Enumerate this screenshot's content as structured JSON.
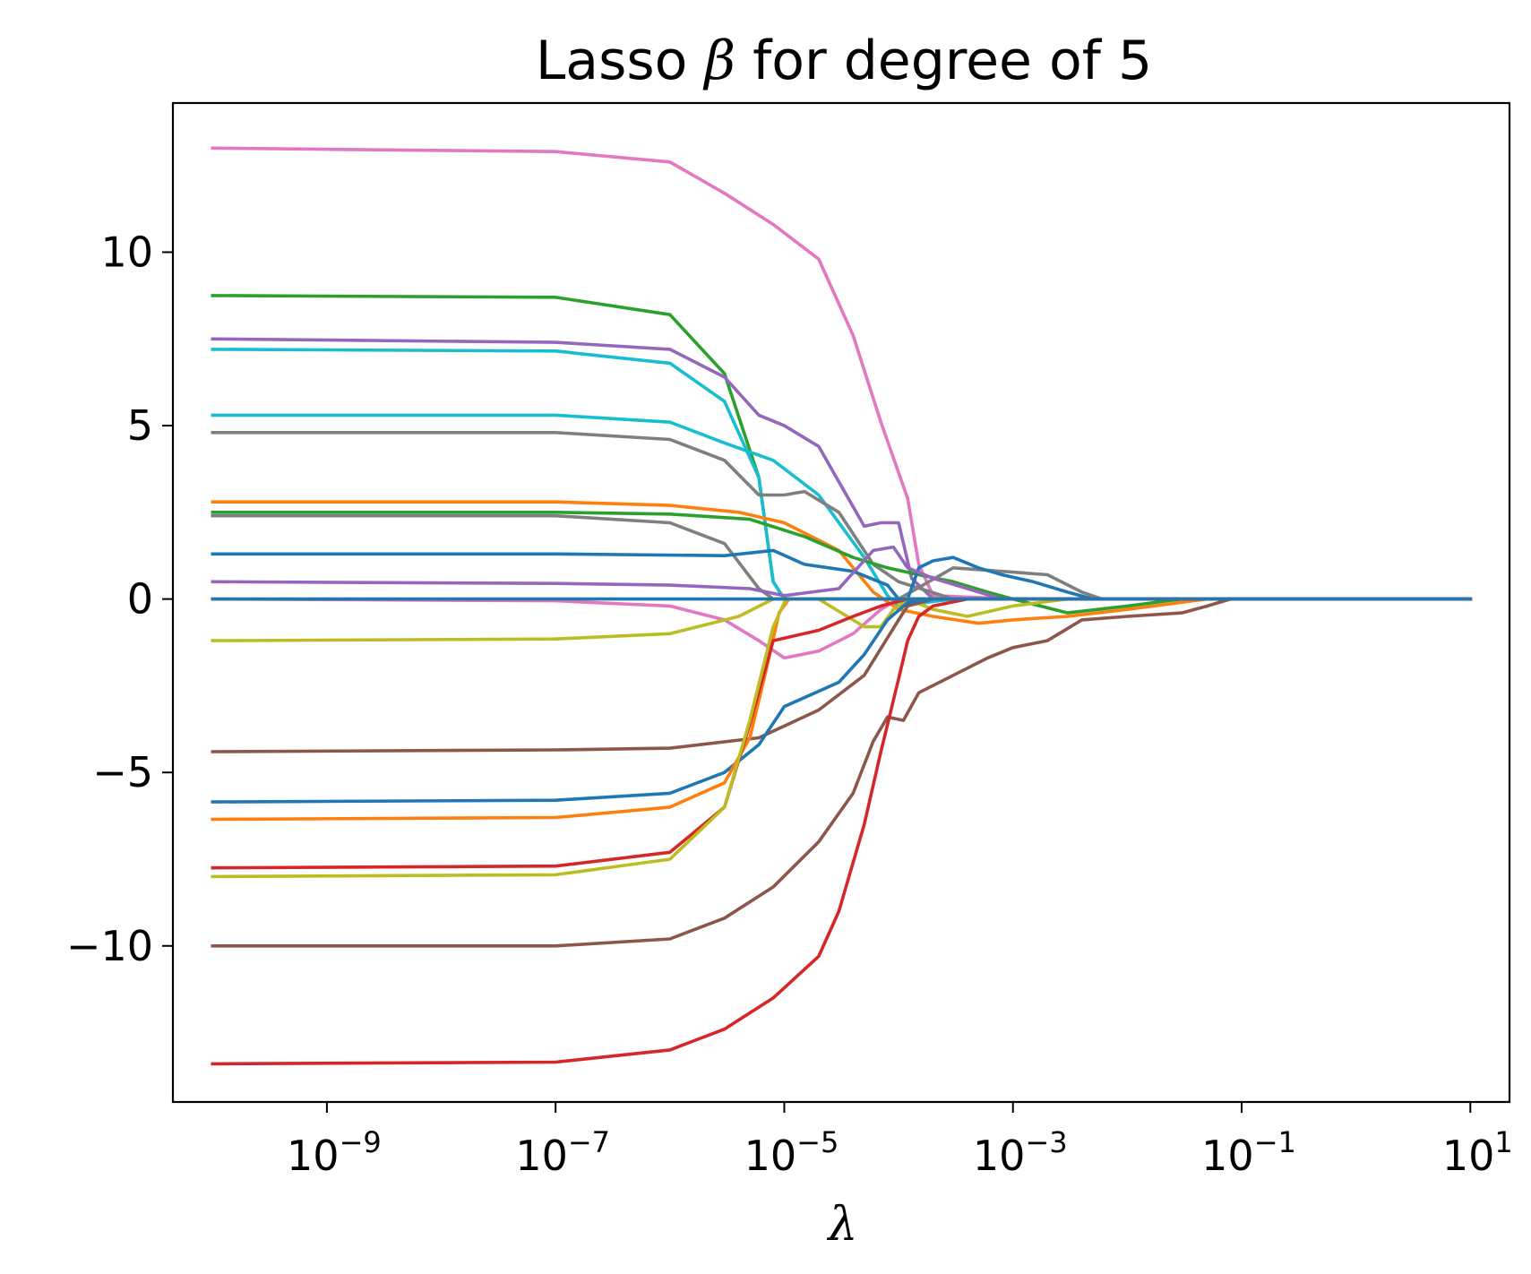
{
  "chart_data": {
    "type": "line",
    "title_prefix": "Lasso ",
    "title_symbol": "β",
    "title_suffix": " for degree of 5",
    "xlabel": "λ",
    "ylabel": "",
    "x_scale": "log",
    "x_range": [
      1e-10,
      10
    ],
    "xlim": [
      4.5e-11,
      22
    ],
    "ylim": [
      -14.5,
      14.3
    ],
    "x_ticks": [
      {
        "value": 1e-09,
        "base": "10",
        "exp": "−9"
      },
      {
        "value": 1e-07,
        "base": "10",
        "exp": "−7"
      },
      {
        "value": 1e-05,
        "base": "10",
        "exp": "−5"
      },
      {
        "value": 0.001,
        "base": "10",
        "exp": "−3"
      },
      {
        "value": 0.1,
        "base": "10",
        "exp": "−1"
      },
      {
        "value": 10,
        "base": "10",
        "exp": "1"
      }
    ],
    "y_ticks": [
      {
        "value": 10,
        "label": "10"
      },
      {
        "value": 5,
        "label": "5"
      },
      {
        "value": 0,
        "label": "0"
      },
      {
        "value": -5,
        "label": "−5"
      },
      {
        "value": -10,
        "label": "−10"
      }
    ],
    "grid": false,
    "legend": "none",
    "series": [
      {
        "color": "#e377c2",
        "points": [
          [
            1e-10,
            13
          ],
          [
            1e-07,
            12.9
          ],
          [
            1e-06,
            12.6
          ],
          [
            3e-06,
            11.7
          ],
          [
            8e-06,
            10.8
          ],
          [
            2e-05,
            9.8
          ],
          [
            4e-05,
            7.6
          ],
          [
            7e-05,
            5.1
          ],
          [
            0.00012,
            2.9
          ],
          [
            0.00015,
            1.0
          ],
          [
            0.0002,
            0.1
          ],
          [
            0.001,
            0
          ],
          [
            10,
            0
          ]
        ]
      },
      {
        "color": "#2ca02c",
        "points": [
          [
            1e-10,
            8.75
          ],
          [
            1e-07,
            8.7
          ],
          [
            1e-06,
            8.2
          ],
          [
            3e-06,
            6.5
          ],
          [
            6e-06,
            3.5
          ],
          [
            8e-06,
            0.5
          ],
          [
            1e-05,
            0
          ],
          [
            10,
            0
          ]
        ]
      },
      {
        "color": "#9467bd",
        "points": [
          [
            1e-10,
            7.5
          ],
          [
            1e-07,
            7.4
          ],
          [
            1e-06,
            7.2
          ],
          [
            3e-06,
            6.4
          ],
          [
            6e-06,
            5.3
          ],
          [
            1e-05,
            5.0
          ],
          [
            2e-05,
            4.4
          ],
          [
            5e-05,
            2.1
          ],
          [
            7e-05,
            2.2
          ],
          [
            0.0001,
            2.2
          ],
          [
            0.00013,
            0.6
          ],
          [
            0.0002,
            0
          ],
          [
            10,
            0
          ]
        ]
      },
      {
        "color": "#17becf",
        "points": [
          [
            1e-10,
            7.2
          ],
          [
            1e-07,
            7.15
          ],
          [
            1e-06,
            6.8
          ],
          [
            3e-06,
            5.7
          ],
          [
            6e-06,
            3.5
          ],
          [
            8e-06,
            0.5
          ],
          [
            1e-05,
            0
          ],
          [
            10,
            0
          ]
        ]
      },
      {
        "color": "#17becf",
        "points": [
          [
            1e-10,
            5.3
          ],
          [
            1e-07,
            5.3
          ],
          [
            1e-06,
            5.1
          ],
          [
            3e-06,
            4.5
          ],
          [
            8e-06,
            4.0
          ],
          [
            2e-05,
            3.0
          ],
          [
            5e-05,
            1.2
          ],
          [
            8e-05,
            0.1
          ],
          [
            0.0001,
            -0.2
          ],
          [
            0.0003,
            0
          ],
          [
            10,
            0
          ]
        ]
      },
      {
        "color": "#7f7f7f",
        "points": [
          [
            1e-10,
            4.8
          ],
          [
            1e-07,
            4.8
          ],
          [
            1e-06,
            4.6
          ],
          [
            3e-06,
            4.0
          ],
          [
            6e-06,
            3.0
          ],
          [
            1e-05,
            3.0
          ],
          [
            1.5e-05,
            3.1
          ],
          [
            3e-05,
            2.5
          ],
          [
            6e-05,
            1.0
          ],
          [
            0.0001,
            0.5
          ],
          [
            0.0003,
            0
          ],
          [
            10,
            0
          ]
        ]
      },
      {
        "color": "#ff7f0e",
        "points": [
          [
            1e-10,
            2.8
          ],
          [
            1e-07,
            2.8
          ],
          [
            1e-06,
            2.7
          ],
          [
            4e-06,
            2.5
          ],
          [
            1e-05,
            2.2
          ],
          [
            3e-05,
            1.4
          ],
          [
            6e-05,
            0.2
          ],
          [
            0.0001,
            -0.3
          ],
          [
            0.0002,
            -0.5
          ],
          [
            0.0005,
            -0.7
          ],
          [
            0.001,
            -0.6
          ],
          [
            0.003,
            -0.5
          ],
          [
            0.01,
            -0.3
          ],
          [
            0.05,
            0
          ],
          [
            10,
            0
          ]
        ]
      },
      {
        "color": "#2ca02c",
        "points": [
          [
            1e-10,
            2.5
          ],
          [
            1e-07,
            2.5
          ],
          [
            1e-06,
            2.45
          ],
          [
            5e-06,
            2.3
          ],
          [
            1.5e-05,
            1.8
          ],
          [
            4e-05,
            1.2
          ],
          [
            8e-05,
            0.9
          ],
          [
            0.00015,
            0.7
          ],
          [
            0.0003,
            0.5
          ],
          [
            0.0006,
            0.2
          ],
          [
            0.001,
            0
          ],
          [
            0.003,
            -0.4
          ],
          [
            0.01,
            -0.2
          ],
          [
            0.03,
            0
          ],
          [
            10,
            0
          ]
        ]
      },
      {
        "color": "#7f7f7f",
        "points": [
          [
            1e-10,
            2.4
          ],
          [
            1e-07,
            2.4
          ],
          [
            1e-06,
            2.2
          ],
          [
            3e-06,
            1.6
          ],
          [
            6e-06,
            0.3
          ],
          [
            8e-06,
            0
          ],
          [
            0.0001,
            0
          ],
          [
            0.0003,
            0.9
          ],
          [
            0.0008,
            0.8
          ],
          [
            0.002,
            0.7
          ],
          [
            0.004,
            0.2
          ],
          [
            0.006,
            0
          ],
          [
            10,
            0
          ]
        ]
      },
      {
        "color": "#1f77b4",
        "points": [
          [
            1e-10,
            1.3
          ],
          [
            1e-07,
            1.3
          ],
          [
            3e-06,
            1.25
          ],
          [
            8e-06,
            1.4
          ],
          [
            1.5e-05,
            1.0
          ],
          [
            4e-05,
            0.8
          ],
          [
            8e-05,
            0.4
          ],
          [
            0.0001,
            0
          ],
          [
            0.00012,
            0
          ],
          [
            0.00015,
            0.9
          ],
          [
            0.0002,
            1.1
          ],
          [
            0.0003,
            1.2
          ],
          [
            0.0005,
            0.9
          ],
          [
            0.0008,
            0.7
          ],
          [
            0.0015,
            0.5
          ],
          [
            0.003,
            0.2
          ],
          [
            0.005,
            0
          ],
          [
            10,
            0
          ]
        ]
      },
      {
        "color": "#9467bd",
        "points": [
          [
            1e-10,
            0.5
          ],
          [
            1e-07,
            0.45
          ],
          [
            1e-06,
            0.4
          ],
          [
            5e-06,
            0.3
          ],
          [
            1e-05,
            0.1
          ],
          [
            3e-05,
            0.3
          ],
          [
            6e-05,
            1.4
          ],
          [
            9e-05,
            1.5
          ],
          [
            0.00012,
            0.9
          ],
          [
            0.0002,
            0.6
          ],
          [
            0.0004,
            0.3
          ],
          [
            0.0008,
            0
          ],
          [
            10,
            0
          ]
        ]
      },
      {
        "color": "#e377c2",
        "points": [
          [
            1e-10,
            0
          ],
          [
            1e-07,
            -0.05
          ],
          [
            1e-06,
            -0.2
          ],
          [
            3e-06,
            -0.6
          ],
          [
            6e-06,
            -1.2
          ],
          [
            1e-05,
            -1.7
          ],
          [
            2e-05,
            -1.5
          ],
          [
            4e-05,
            -1.0
          ],
          [
            7e-05,
            -0.3
          ],
          [
            0.0001,
            0
          ],
          [
            10,
            0
          ]
        ]
      },
      {
        "color": "#bcbd22",
        "points": [
          [
            1e-10,
            -1.2
          ],
          [
            1e-07,
            -1.15
          ],
          [
            1e-06,
            -1.0
          ],
          [
            4e-06,
            -0.5
          ],
          [
            8e-06,
            0
          ],
          [
            2e-05,
            0
          ],
          [
            5e-05,
            -0.8
          ],
          [
            7e-05,
            -0.8
          ],
          [
            9e-05,
            -0.3
          ],
          [
            0.00012,
            0
          ],
          [
            0.0002,
            -0.3
          ],
          [
            0.0004,
            -0.5
          ],
          [
            0.001,
            -0.2
          ],
          [
            0.003,
            0
          ],
          [
            10,
            0
          ]
        ]
      },
      {
        "color": "#8c564b",
        "points": [
          [
            1e-10,
            -4.4
          ],
          [
            1e-07,
            -4.35
          ],
          [
            1e-06,
            -4.3
          ],
          [
            6e-06,
            -4.0
          ],
          [
            2e-05,
            -3.2
          ],
          [
            5e-05,
            -2.2
          ],
          [
            0.0001,
            -0.6
          ],
          [
            0.00012,
            -0.2
          ],
          [
            0.0002,
            0
          ],
          [
            10,
            0
          ]
        ]
      },
      {
        "color": "#1f77b4",
        "points": [
          [
            1e-10,
            -5.85
          ],
          [
            1e-07,
            -5.8
          ],
          [
            1e-06,
            -5.6
          ],
          [
            3e-06,
            -5.0
          ],
          [
            6e-06,
            -4.2
          ],
          [
            1e-05,
            -3.1
          ],
          [
            3e-05,
            -2.4
          ],
          [
            5e-05,
            -1.6
          ],
          [
            8e-05,
            -0.6
          ],
          [
            0.00012,
            -0.1
          ],
          [
            0.0002,
            0
          ],
          [
            10,
            0
          ]
        ]
      },
      {
        "color": "#ff7f0e",
        "points": [
          [
            1e-10,
            -6.35
          ],
          [
            1e-07,
            -6.3
          ],
          [
            1e-06,
            -6.0
          ],
          [
            3e-06,
            -5.3
          ],
          [
            5e-06,
            -4.0
          ],
          [
            7e-06,
            -2.0
          ],
          [
            9e-06,
            -0.4
          ],
          [
            1.1e-05,
            0
          ],
          [
            10,
            0
          ]
        ]
      },
      {
        "color": "#d62728",
        "points": [
          [
            1e-10,
            -7.75
          ],
          [
            1e-07,
            -7.7
          ],
          [
            1e-06,
            -7.3
          ],
          [
            3e-06,
            -6.0
          ],
          [
            5e-06,
            -3.6
          ],
          [
            8e-06,
            -1.2
          ],
          [
            2e-05,
            -0.9
          ],
          [
            4e-05,
            -0.5
          ],
          [
            7e-05,
            -0.2
          ],
          [
            0.00012,
            0
          ],
          [
            10,
            0
          ]
        ]
      },
      {
        "color": "#bcbd22",
        "points": [
          [
            1e-10,
            -8.0
          ],
          [
            1e-07,
            -7.95
          ],
          [
            1e-06,
            -7.5
          ],
          [
            3e-06,
            -6.0
          ],
          [
            5e-06,
            -3.5
          ],
          [
            8e-06,
            -0.8
          ],
          [
            1e-05,
            -0.1
          ],
          [
            1.1e-05,
            0
          ],
          [
            10,
            0
          ]
        ]
      },
      {
        "color": "#8c564b",
        "points": [
          [
            1e-10,
            -10.0
          ],
          [
            1e-07,
            -10.0
          ],
          [
            1e-06,
            -9.8
          ],
          [
            3e-06,
            -9.2
          ],
          [
            8e-06,
            -8.3
          ],
          [
            2e-05,
            -7.0
          ],
          [
            4e-05,
            -5.6
          ],
          [
            6e-05,
            -4.1
          ],
          [
            8e-05,
            -3.4
          ],
          [
            0.00011,
            -3.5
          ],
          [
            0.00015,
            -2.7
          ],
          [
            0.0003,
            -2.2
          ],
          [
            0.0006,
            -1.7
          ],
          [
            0.001,
            -1.4
          ],
          [
            0.002,
            -1.2
          ],
          [
            0.004,
            -0.6
          ],
          [
            0.01,
            -0.5
          ],
          [
            0.03,
            -0.4
          ],
          [
            0.05,
            -0.2
          ],
          [
            0.08,
            0
          ],
          [
            10,
            0
          ]
        ]
      },
      {
        "color": "#d62728",
        "points": [
          [
            1e-10,
            -13.4
          ],
          [
            1e-07,
            -13.35
          ],
          [
            1e-06,
            -13.0
          ],
          [
            3e-06,
            -12.4
          ],
          [
            8e-06,
            -11.5
          ],
          [
            2e-05,
            -10.3
          ],
          [
            3e-05,
            -9.0
          ],
          [
            5e-05,
            -6.5
          ],
          [
            7e-05,
            -4.4
          ],
          [
            0.0001,
            -2.3
          ],
          [
            0.00012,
            -1.2
          ],
          [
            0.00015,
            -0.5
          ],
          [
            0.0002,
            -0.2
          ],
          [
            0.0004,
            0
          ],
          [
            10,
            0
          ]
        ]
      },
      {
        "color": "#1f77b4",
        "points": [
          [
            1e-10,
            0
          ],
          [
            10,
            0
          ]
        ]
      }
    ]
  }
}
